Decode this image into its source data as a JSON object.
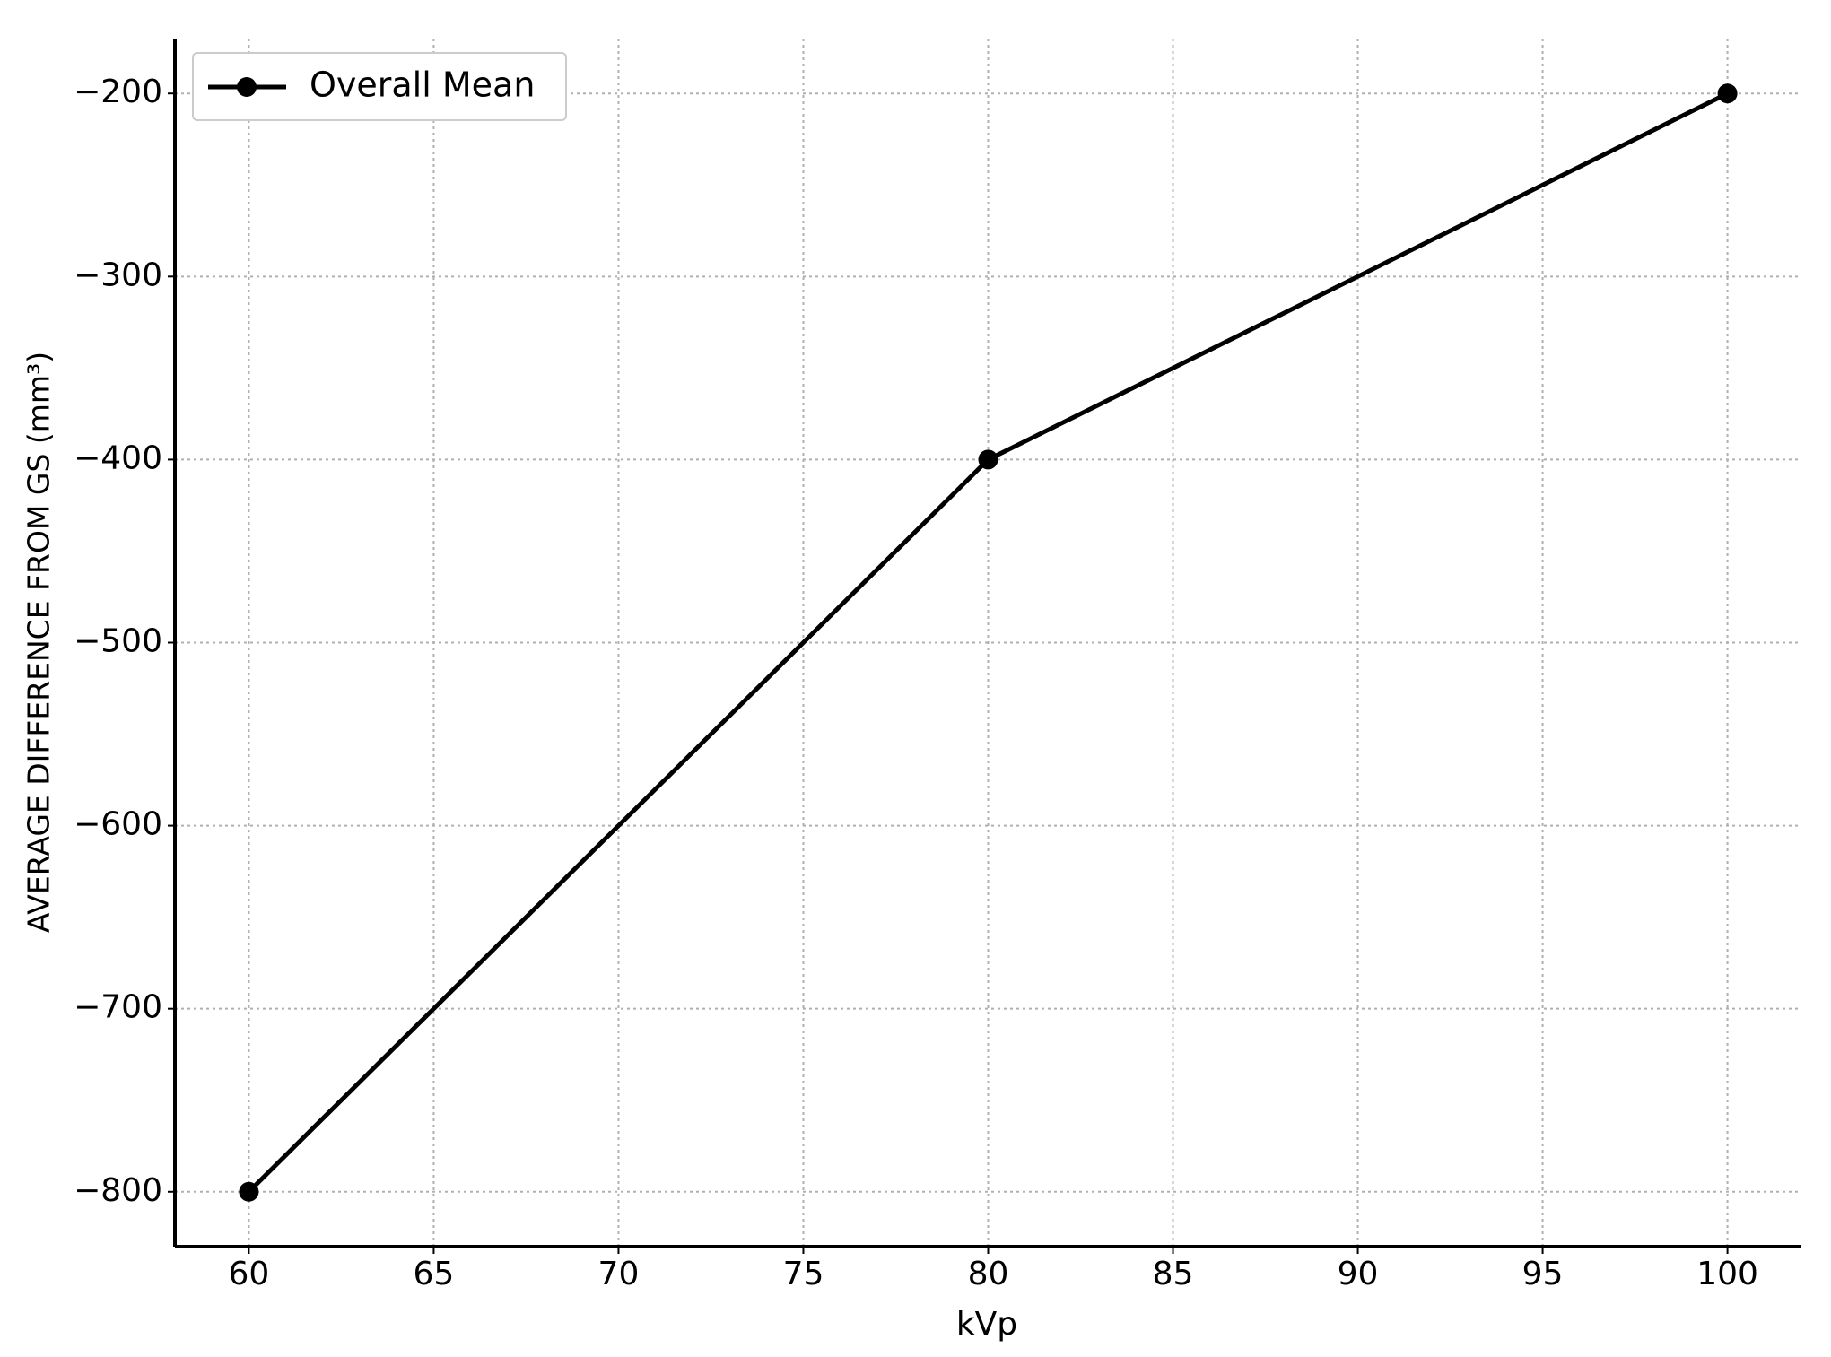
{
  "chart_data": {
    "type": "line",
    "xlabel": "kVp",
    "ylabel": "AVERAGE DIFFERENCE FROM GS (mm³)",
    "x": [
      60,
      80,
      100
    ],
    "series": [
      {
        "name": "Overall Mean",
        "color": "#000000",
        "values": [
          -800,
          -400,
          -200
        ]
      }
    ],
    "xlim": [
      58,
      102
    ],
    "ylim": [
      -830,
      -170
    ],
    "xticks": [
      60,
      65,
      70,
      75,
      80,
      85,
      90,
      95,
      100
    ],
    "yticks": [
      {
        "value": -800,
        "label": "−800"
      },
      {
        "value": -700,
        "label": "−700"
      },
      {
        "value": -600,
        "label": "−600"
      },
      {
        "value": -500,
        "label": "−500"
      },
      {
        "value": -400,
        "label": "−400"
      },
      {
        "value": -300,
        "label": "−300"
      },
      {
        "value": -200,
        "label": "−200"
      }
    ],
    "grid": true,
    "legend": "upper-left"
  }
}
